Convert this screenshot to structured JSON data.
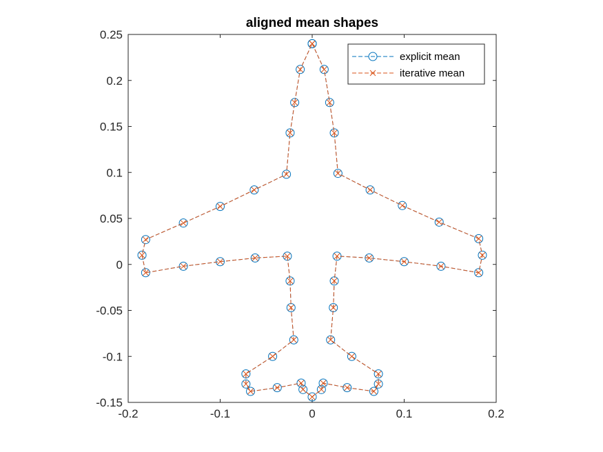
{
  "chart_data": {
    "type": "line",
    "title": "aligned mean shapes",
    "xlabel": "",
    "ylabel": "",
    "xlim": [
      -0.2,
      0.2
    ],
    "ylim": [
      -0.15,
      0.25
    ],
    "xticks": [
      -0.2,
      -0.1,
      0,
      0.1,
      0.2
    ],
    "xtick_labels": [
      "-0.2",
      "-0.1",
      "0",
      "0.1",
      "0.2"
    ],
    "yticks": [
      -0.15,
      -0.1,
      -0.05,
      0,
      0.05,
      0.1,
      0.15,
      0.2,
      0.25
    ],
    "ytick_labels": [
      "-0.15",
      "-0.1",
      "-0.05",
      "0",
      "0.05",
      "0.1",
      "0.15",
      "0.2",
      "0.25"
    ],
    "grid": false,
    "legend_position": "top-right",
    "series": [
      {
        "name": "explicit mean",
        "color": "#0072BD",
        "marker": "circle",
        "line_style": "dashed",
        "points": [
          [
            0.0,
            0.24
          ],
          [
            0.013,
            0.212
          ],
          [
            0.019,
            0.176
          ],
          [
            0.024,
            0.143
          ],
          [
            0.028,
            0.099
          ],
          [
            0.063,
            0.081
          ],
          [
            0.098,
            0.064
          ],
          [
            0.138,
            0.046
          ],
          [
            0.181,
            0.028
          ],
          [
            0.185,
            0.01
          ],
          [
            0.181,
            -0.009
          ],
          [
            0.14,
            -0.002
          ],
          [
            0.1,
            0.003
          ],
          [
            0.062,
            0.007
          ],
          [
            0.027,
            0.009
          ],
          [
            0.024,
            -0.018
          ],
          [
            0.023,
            -0.047
          ],
          [
            0.02,
            -0.082
          ],
          [
            0.043,
            -0.1
          ],
          [
            0.072,
            -0.119
          ],
          [
            0.072,
            -0.13
          ],
          [
            0.067,
            -0.138
          ],
          [
            0.038,
            -0.134
          ],
          [
            0.012,
            -0.129
          ],
          [
            0.01,
            -0.136
          ],
          [
            0.0,
            -0.144
          ],
          [
            -0.01,
            -0.136
          ],
          [
            -0.012,
            -0.129
          ],
          [
            -0.038,
            -0.134
          ],
          [
            -0.067,
            -0.138
          ],
          [
            -0.072,
            -0.13
          ],
          [
            -0.072,
            -0.119
          ],
          [
            -0.043,
            -0.1
          ],
          [
            -0.02,
            -0.082
          ],
          [
            -0.023,
            -0.047
          ],
          [
            -0.024,
            -0.018
          ],
          [
            -0.027,
            0.009
          ],
          [
            -0.062,
            0.007
          ],
          [
            -0.1,
            0.003
          ],
          [
            -0.14,
            -0.002
          ],
          [
            -0.181,
            -0.009
          ],
          [
            -0.185,
            0.01
          ],
          [
            -0.181,
            0.027
          ],
          [
            -0.14,
            0.045
          ],
          [
            -0.1,
            0.063
          ],
          [
            -0.063,
            0.081
          ],
          [
            -0.028,
            0.098
          ],
          [
            -0.024,
            0.143
          ],
          [
            -0.019,
            0.176
          ],
          [
            -0.013,
            0.212
          ],
          [
            0.0,
            0.24
          ]
        ]
      },
      {
        "name": "iterative mean",
        "color": "#D95319",
        "marker": "x",
        "line_style": "dashed",
        "points": [
          [
            0.0,
            0.24
          ],
          [
            0.013,
            0.212
          ],
          [
            0.019,
            0.176
          ],
          [
            0.024,
            0.143
          ],
          [
            0.028,
            0.099
          ],
          [
            0.063,
            0.081
          ],
          [
            0.098,
            0.064
          ],
          [
            0.138,
            0.046
          ],
          [
            0.181,
            0.028
          ],
          [
            0.185,
            0.01
          ],
          [
            0.181,
            -0.009
          ],
          [
            0.14,
            -0.002
          ],
          [
            0.1,
            0.003
          ],
          [
            0.062,
            0.007
          ],
          [
            0.027,
            0.009
          ],
          [
            0.024,
            -0.018
          ],
          [
            0.023,
            -0.047
          ],
          [
            0.02,
            -0.082
          ],
          [
            0.043,
            -0.1
          ],
          [
            0.072,
            -0.119
          ],
          [
            0.072,
            -0.13
          ],
          [
            0.067,
            -0.138
          ],
          [
            0.038,
            -0.134
          ],
          [
            0.012,
            -0.129
          ],
          [
            0.01,
            -0.136
          ],
          [
            0.0,
            -0.144
          ],
          [
            -0.01,
            -0.136
          ],
          [
            -0.012,
            -0.129
          ],
          [
            -0.038,
            -0.134
          ],
          [
            -0.067,
            -0.138
          ],
          [
            -0.072,
            -0.13
          ],
          [
            -0.072,
            -0.119
          ],
          [
            -0.043,
            -0.1
          ],
          [
            -0.02,
            -0.082
          ],
          [
            -0.023,
            -0.047
          ],
          [
            -0.024,
            -0.018
          ],
          [
            -0.027,
            0.009
          ],
          [
            -0.062,
            0.007
          ],
          [
            -0.1,
            0.003
          ],
          [
            -0.14,
            -0.002
          ],
          [
            -0.181,
            -0.009
          ],
          [
            -0.185,
            0.01
          ],
          [
            -0.181,
            0.027
          ],
          [
            -0.14,
            0.045
          ],
          [
            -0.1,
            0.063
          ],
          [
            -0.063,
            0.081
          ],
          [
            -0.028,
            0.098
          ],
          [
            -0.024,
            0.143
          ],
          [
            -0.019,
            0.176
          ],
          [
            -0.013,
            0.212
          ],
          [
            0.0,
            0.24
          ]
        ]
      }
    ]
  }
}
